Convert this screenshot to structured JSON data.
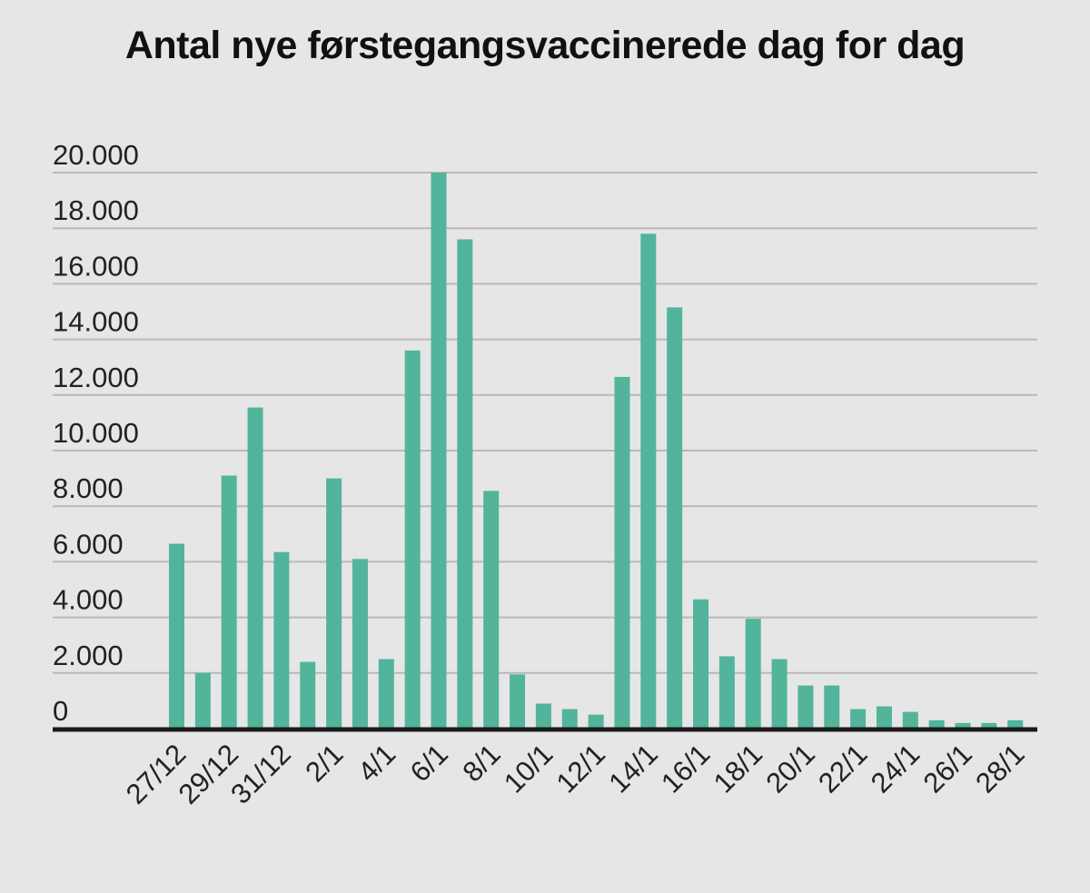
{
  "chart_data": {
    "type": "bar",
    "title": "Antal nye førstegangsvaccinerede dag for dag",
    "xlabel": "",
    "ylabel": "",
    "ylim": [
      0,
      20000
    ],
    "yticks": [
      0,
      2000,
      4000,
      6000,
      8000,
      10000,
      12000,
      14000,
      16000,
      18000,
      20000
    ],
    "ytick_labels": [
      "0",
      "2.000",
      "4.000",
      "6.000",
      "8.000",
      "10.000",
      "12.000",
      "14.000",
      "16.000",
      "18.000",
      "20.000"
    ],
    "categories": [
      "27/12",
      "28/12",
      "29/12",
      "30/12",
      "31/12",
      "1/1",
      "2/1",
      "3/1",
      "4/1",
      "5/1",
      "6/1",
      "7/1",
      "8/1",
      "9/1",
      "10/1",
      "11/1",
      "12/1",
      "13/1",
      "14/1",
      "15/1",
      "16/1",
      "17/1",
      "18/1",
      "19/1",
      "20/1",
      "21/1",
      "22/1",
      "23/1",
      "24/1",
      "25/1",
      "26/1",
      "27/1",
      "28/1"
    ],
    "xtick_labels": [
      "27/12",
      "29/12",
      "31/12",
      "2/1",
      "4/1",
      "6/1",
      "8/1",
      "10/1",
      "12/1",
      "14/1",
      "16/1",
      "18/1",
      "20/1",
      "22/1",
      "24/1",
      "26/1",
      "28/1"
    ],
    "values": [
      6650,
      2000,
      9100,
      11550,
      6350,
      2400,
      9000,
      6100,
      2500,
      13600,
      20000,
      17600,
      8550,
      1950,
      900,
      700,
      500,
      12650,
      17800,
      15150,
      4650,
      2600,
      3950,
      2500,
      1550,
      1550,
      700,
      800,
      600,
      300,
      200,
      200,
      300
    ],
    "grid": true,
    "legend": "none",
    "bar_color": "#52b49b",
    "grid_color": "#b9b9b9",
    "axis_color": "#1a1a1a"
  }
}
